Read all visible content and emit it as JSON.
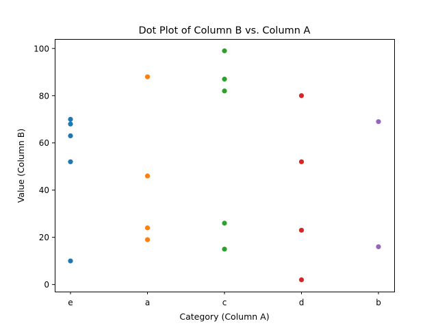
{
  "chart_data": {
    "type": "scatter",
    "title": "Dot Plot of Column B vs. Column A",
    "xlabel": "Category (Column A)",
    "ylabel": "Value (Column B)",
    "categories": [
      "e",
      "a",
      "c",
      "d",
      "b"
    ],
    "ylim": [
      -3,
      104
    ],
    "yticks": [
      0,
      20,
      40,
      60,
      80,
      100
    ],
    "grid": false,
    "series": [
      {
        "category": "e",
        "color": "#1f77b4",
        "values": [
          70,
          68,
          63,
          52,
          10
        ]
      },
      {
        "category": "a",
        "color": "#ff7f0e",
        "values": [
          88,
          46,
          24,
          19
        ]
      },
      {
        "category": "c",
        "color": "#2ca02c",
        "values": [
          99,
          87,
          82,
          26,
          15
        ]
      },
      {
        "category": "d",
        "color": "#d62728",
        "values": [
          80,
          52,
          23,
          2
        ]
      },
      {
        "category": "b",
        "color": "#9467bd",
        "values": [
          69,
          16
        ]
      }
    ]
  }
}
